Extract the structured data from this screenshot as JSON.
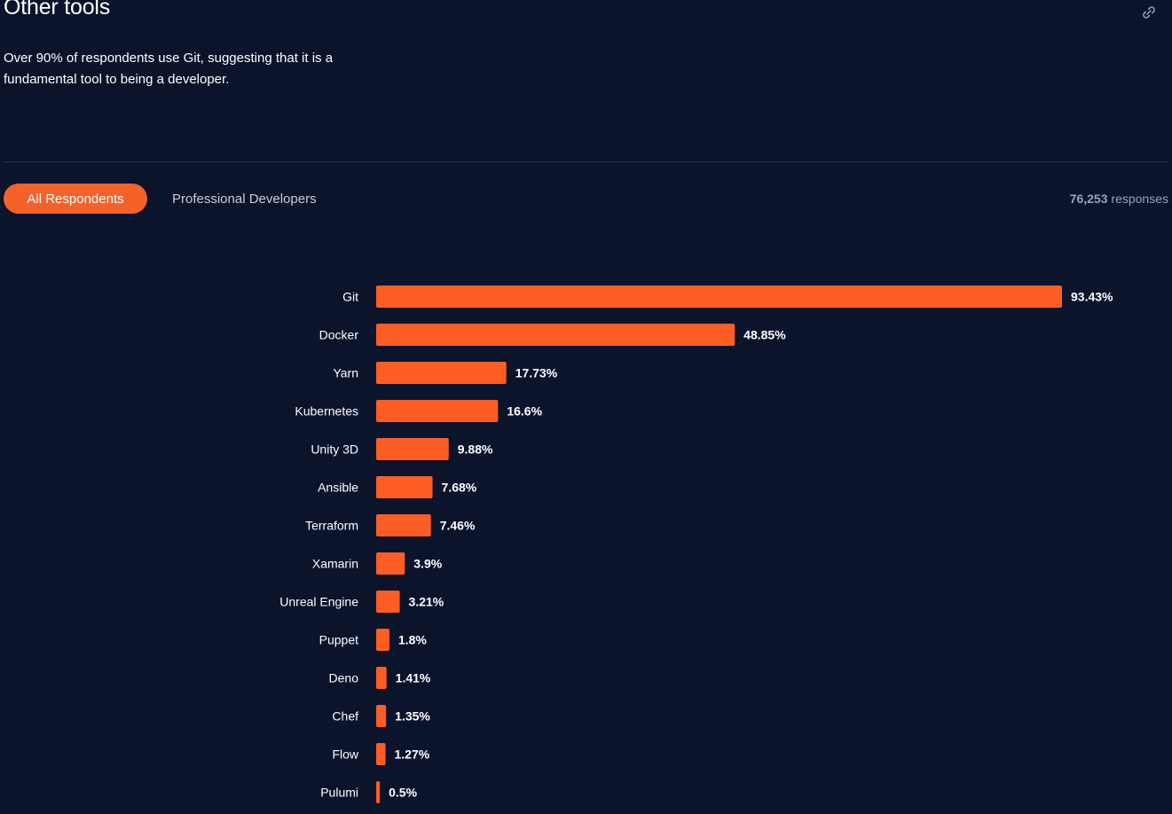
{
  "header": {
    "title": "Other tools",
    "description": "Over 90% of respondents use Git, suggesting that it is a fundamental tool to being a developer."
  },
  "tabs": [
    {
      "label": "All Respondents",
      "active": true
    },
    {
      "label": "Professional Developers",
      "active": false
    }
  ],
  "responses": {
    "count": "76,253",
    "label": "responses"
  },
  "icons": {
    "permalink": "link-icon"
  },
  "colors": {
    "background": "#0c142c",
    "accent": "#f4622a",
    "bar": "#fe5e24"
  },
  "chart_data": {
    "type": "bar",
    "orientation": "horizontal",
    "categories": [
      "Git",
      "Docker",
      "Yarn",
      "Kubernetes",
      "Unity 3D",
      "Ansible",
      "Terraform",
      "Xamarin",
      "Unreal Engine",
      "Puppet",
      "Deno",
      "Chef",
      "Flow",
      "Pulumi"
    ],
    "values": [
      93.43,
      48.85,
      17.73,
      16.6,
      9.88,
      7.68,
      7.46,
      3.9,
      3.21,
      1.8,
      1.41,
      1.35,
      1.27,
      0.5
    ],
    "value_labels": [
      "93.43%",
      "48.85%",
      "17.73%",
      "16.6%",
      "9.88%",
      "7.68%",
      "7.46%",
      "3.9%",
      "3.21%",
      "1.8%",
      "1.41%",
      "1.35%",
      "1.27%",
      "0.5%"
    ],
    "xlim": [
      0,
      100
    ],
    "unit": "%"
  }
}
